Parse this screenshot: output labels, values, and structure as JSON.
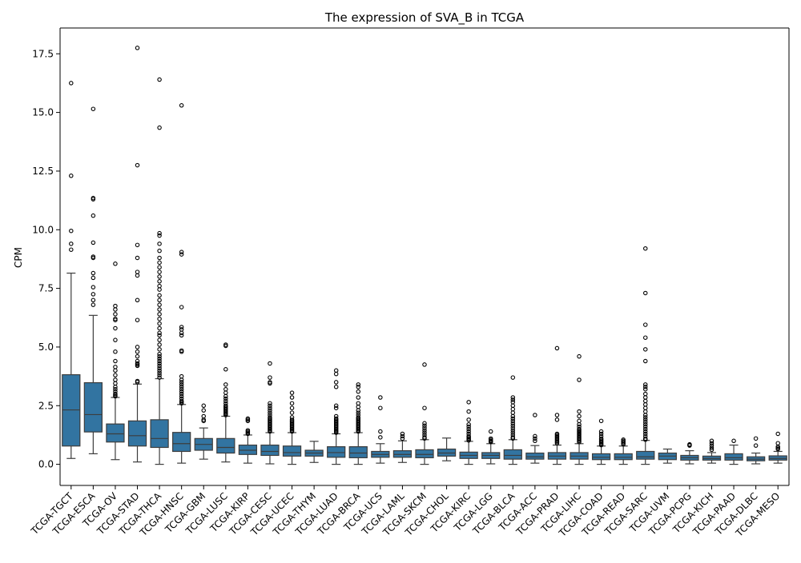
{
  "chart_data": {
    "type": "box",
    "title": "The expression of SVA_B in TCGA",
    "xlabel": "",
    "ylabel": "CPM",
    "ylim": [
      -0.9,
      18.6
    ],
    "yticks": [
      0.0,
      2.5,
      5.0,
      7.5,
      10.0,
      12.5,
      15.0,
      17.5
    ],
    "ytick_labels": [
      "0.0",
      "2.5",
      "5.0",
      "7.5",
      "10.0",
      "12.5",
      "15.0",
      "17.5"
    ],
    "grid": false,
    "legend": "none",
    "colors": {
      "box": "#3274a1",
      "line": "#3d3d3d",
      "axis": "#000000"
    },
    "categories": [
      "TCGA-TGCT",
      "TCGA-ESCA",
      "TCGA-OV",
      "TCGA-STAD",
      "TCGA-THCA",
      "TCGA-HNSC",
      "TCGA-GBM",
      "TCGA-LUSC",
      "TCGA-KIRP",
      "TCGA-CESC",
      "TCGA-UCEC",
      "TCGA-THYM",
      "TCGA-LUAD",
      "TCGA-BRCA",
      "TCGA-UCS",
      "TCGA-LAML",
      "TCGA-SKCM",
      "TCGA-CHOL",
      "TCGA-KIRC",
      "TCGA-LGG",
      "TCGA-BLCA",
      "TCGA-ACC",
      "TCGA-PRAD",
      "TCGA-LIHC",
      "TCGA-COAD",
      "TCGA-READ",
      "TCGA-SARC",
      "TCGA-UVM",
      "TCGA-PCPG",
      "TCGA-KICH",
      "TCGA-PAAD",
      "TCGA-DLBC",
      "TCGA-MESO"
    ],
    "boxes": [
      {
        "whislo": 0.25,
        "q1": 0.78,
        "med": 2.32,
        "q3": 3.82,
        "whishi": 8.15,
        "fliers": [
          16.25,
          12.3,
          9.95,
          9.4,
          9.15
        ]
      },
      {
        "whislo": 0.45,
        "q1": 1.38,
        "med": 2.12,
        "q3": 3.48,
        "whishi": 6.35,
        "fliers": [
          15.15,
          11.35,
          11.3,
          10.6,
          9.45,
          8.85,
          8.8,
          8.15,
          7.95,
          7.55,
          7.25,
          7.0,
          6.8
        ]
      },
      {
        "whislo": 0.2,
        "q1": 0.95,
        "med": 1.3,
        "q3": 1.72,
        "whishi": 2.85,
        "fliers": [
          8.55,
          6.75,
          6.6,
          6.4,
          6.2,
          6.15,
          5.8,
          5.3,
          4.8,
          4.4,
          4.15,
          4.0,
          3.8,
          3.6,
          3.45,
          3.3,
          3.2,
          3.1,
          3.0,
          2.95,
          2.9
        ]
      },
      {
        "whislo": 0.1,
        "q1": 0.78,
        "med": 1.22,
        "q3": 1.85,
        "whishi": 3.42,
        "fliers": [
          17.75,
          12.75,
          9.35,
          8.8,
          8.2,
          8.05,
          7.0,
          6.15,
          5.0,
          4.8,
          4.6,
          4.4,
          4.3,
          4.25,
          4.2,
          3.55,
          3.5
        ]
      },
      {
        "whislo": 0.0,
        "q1": 0.72,
        "med": 1.1,
        "q3": 1.9,
        "whishi": 3.65,
        "fliers": [
          16.4,
          14.35,
          9.85,
          9.75,
          9.4,
          9.1,
          8.8,
          8.6,
          8.4,
          8.2,
          8.0,
          7.8,
          7.6,
          7.45,
          7.2,
          7.0,
          6.8,
          6.6,
          6.4,
          6.2,
          6.0,
          5.8,
          5.6,
          5.5,
          5.3,
          5.1,
          4.9,
          4.7,
          4.6,
          4.5,
          4.4,
          4.3,
          4.2,
          4.1,
          4.0,
          3.9,
          3.8,
          3.7
        ]
      },
      {
        "whislo": 0.05,
        "q1": 0.55,
        "med": 0.88,
        "q3": 1.36,
        "whishi": 2.55,
        "fliers": [
          15.3,
          9.05,
          8.95,
          6.7,
          5.85,
          5.75,
          5.6,
          5.5,
          4.85,
          4.8,
          3.75,
          3.6,
          3.5,
          3.4,
          3.3,
          3.2,
          3.1,
          3.0,
          2.9,
          2.8,
          2.7,
          2.65,
          2.6
        ]
      },
      {
        "whislo": 0.22,
        "q1": 0.6,
        "med": 0.85,
        "q3": 1.1,
        "whishi": 1.55,
        "fliers": [
          2.5,
          2.3,
          2.05,
          1.9,
          1.85
        ]
      },
      {
        "whislo": 0.1,
        "q1": 0.48,
        "med": 0.72,
        "q3": 1.1,
        "whishi": 2.05,
        "fliers": [
          5.1,
          5.05,
          4.05,
          3.4,
          3.2,
          3.05,
          2.9,
          2.8,
          2.7,
          2.6,
          2.5,
          2.45,
          2.4,
          2.35,
          2.3,
          2.25,
          2.2,
          2.15,
          2.1
        ]
      },
      {
        "whislo": 0.05,
        "q1": 0.42,
        "med": 0.6,
        "q3": 0.82,
        "whishi": 1.25,
        "fliers": [
          1.95,
          1.9,
          1.85,
          1.45,
          1.4,
          1.35,
          1.3
        ]
      },
      {
        "whislo": 0.02,
        "q1": 0.38,
        "med": 0.55,
        "q3": 0.82,
        "whishi": 1.35,
        "fliers": [
          4.3,
          3.7,
          3.5,
          3.45,
          2.6,
          2.5,
          2.4,
          2.3,
          2.2,
          2.1,
          2.0,
          1.95,
          1.9,
          1.85,
          1.8,
          1.75,
          1.7,
          1.65,
          1.6,
          1.55,
          1.5,
          1.45,
          1.4
        ]
      },
      {
        "whislo": 0.0,
        "q1": 0.35,
        "med": 0.5,
        "q3": 0.78,
        "whishi": 1.35,
        "fliers": [
          3.05,
          2.85,
          2.6,
          2.4,
          2.2,
          2.0,
          1.9,
          1.85,
          1.8,
          1.75,
          1.7,
          1.65,
          1.6,
          1.55,
          1.5,
          1.45,
          1.4
        ]
      },
      {
        "whislo": 0.08,
        "q1": 0.35,
        "med": 0.48,
        "q3": 0.6,
        "whishi": 0.98,
        "fliers": []
      },
      {
        "whislo": 0.0,
        "q1": 0.3,
        "med": 0.5,
        "q3": 0.75,
        "whishi": 1.3,
        "fliers": [
          4.0,
          3.85,
          3.5,
          3.3,
          2.5,
          2.4,
          2.05,
          1.95,
          1.9,
          1.85,
          1.8,
          1.75,
          1.7,
          1.65,
          1.6,
          1.55,
          1.5,
          1.45,
          1.4,
          1.35
        ]
      },
      {
        "whislo": 0.0,
        "q1": 0.28,
        "med": 0.48,
        "q3": 0.75,
        "whishi": 1.35,
        "fliers": [
          3.4,
          3.3,
          3.1,
          2.85,
          2.6,
          2.45,
          2.3,
          2.2,
          2.1,
          2.0,
          1.95,
          1.9,
          1.85,
          1.8,
          1.75,
          1.7,
          1.65,
          1.6,
          1.55,
          1.5,
          1.45,
          1.4
        ]
      },
      {
        "whislo": 0.05,
        "q1": 0.3,
        "med": 0.42,
        "q3": 0.55,
        "whishi": 0.88,
        "fliers": [
          2.85,
          2.4,
          1.4,
          1.15
        ]
      },
      {
        "whislo": 0.08,
        "q1": 0.3,
        "med": 0.42,
        "q3": 0.58,
        "whishi": 1.0,
        "fliers": [
          1.3,
          1.2,
          1.1
        ]
      },
      {
        "whislo": 0.0,
        "q1": 0.28,
        "med": 0.42,
        "q3": 0.62,
        "whishi": 1.05,
        "fliers": [
          4.25,
          2.4,
          1.75,
          1.65,
          1.55,
          1.45,
          1.35,
          1.25,
          1.15,
          1.1
        ]
      },
      {
        "whislo": 0.15,
        "q1": 0.35,
        "med": 0.48,
        "q3": 0.65,
        "whishi": 1.12,
        "fliers": []
      },
      {
        "whislo": 0.0,
        "q1": 0.25,
        "med": 0.38,
        "q3": 0.52,
        "whishi": 0.98,
        "fliers": [
          2.65,
          2.25,
          1.9,
          1.7,
          1.6,
          1.5,
          1.4,
          1.3,
          1.2,
          1.15,
          1.1,
          1.05,
          1.02
        ]
      },
      {
        "whislo": 0.02,
        "q1": 0.25,
        "med": 0.38,
        "q3": 0.5,
        "whishi": 0.88,
        "fliers": [
          1.4,
          1.1,
          1.05,
          1.0,
          0.98,
          0.95
        ]
      },
      {
        "whislo": 0.0,
        "q1": 0.22,
        "med": 0.38,
        "q3": 0.62,
        "whishi": 1.05,
        "fliers": [
          3.7,
          2.85,
          2.75,
          2.65,
          2.5,
          2.35,
          2.2,
          2.05,
          1.95,
          1.85,
          1.75,
          1.65,
          1.55,
          1.45,
          1.35,
          1.25,
          1.15,
          1.1
        ]
      },
      {
        "whislo": 0.05,
        "q1": 0.22,
        "med": 0.32,
        "q3": 0.48,
        "whishi": 0.8,
        "fliers": [
          2.1,
          1.2,
          1.1,
          1.0
        ]
      },
      {
        "whislo": 0.0,
        "q1": 0.22,
        "med": 0.35,
        "q3": 0.5,
        "whishi": 0.82,
        "fliers": [
          4.95,
          2.1,
          1.9,
          1.3,
          1.25,
          1.2,
          1.15,
          1.1,
          1.05,
          1.0,
          0.95,
          0.9
        ]
      },
      {
        "whislo": 0.0,
        "q1": 0.22,
        "med": 0.35,
        "q3": 0.5,
        "whishi": 0.88,
        "fliers": [
          4.6,
          3.6,
          2.25,
          2.05,
          1.85,
          1.7,
          1.6,
          1.5,
          1.45,
          1.4,
          1.35,
          1.3,
          1.25,
          1.2,
          1.15,
          1.1,
          1.05,
          1.0,
          0.95
        ]
      },
      {
        "whislo": 0.0,
        "q1": 0.2,
        "med": 0.3,
        "q3": 0.45,
        "whishi": 0.78,
        "fliers": [
          1.85,
          1.4,
          1.3,
          1.2,
          1.1,
          1.05,
          1.0,
          0.95,
          0.9,
          0.85,
          0.82
        ]
      },
      {
        "whislo": 0.0,
        "q1": 0.2,
        "med": 0.3,
        "q3": 0.45,
        "whishi": 0.78,
        "fliers": [
          1.05,
          1.0,
          0.95,
          0.9,
          0.85
        ]
      },
      {
        "whislo": 0.0,
        "q1": 0.22,
        "med": 0.32,
        "q3": 0.55,
        "whishi": 1.02,
        "fliers": [
          9.2,
          7.3,
          5.95,
          5.4,
          4.9,
          4.4,
          3.4,
          3.3,
          3.2,
          3.0,
          2.85,
          2.7,
          2.55,
          2.4,
          2.25,
          2.1,
          2.0,
          1.9,
          1.8,
          1.7,
          1.6,
          1.5,
          1.4,
          1.3,
          1.2,
          1.1,
          1.05
        ]
      },
      {
        "whislo": 0.05,
        "q1": 0.2,
        "med": 0.35,
        "q3": 0.48,
        "whishi": 0.65,
        "fliers": []
      },
      {
        "whislo": 0.02,
        "q1": 0.18,
        "med": 0.28,
        "q3": 0.38,
        "whishi": 0.58,
        "fliers": [
          0.85,
          0.82,
          0.8
        ]
      },
      {
        "whislo": 0.05,
        "q1": 0.18,
        "med": 0.25,
        "q3": 0.35,
        "whishi": 0.5,
        "fliers": [
          1.0,
          0.9,
          0.8,
          0.7,
          0.62
        ]
      },
      {
        "whislo": 0.0,
        "q1": 0.18,
        "med": 0.28,
        "q3": 0.45,
        "whishi": 0.82,
        "fliers": [
          1.0
        ]
      },
      {
        "whislo": 0.02,
        "q1": 0.15,
        "med": 0.22,
        "q3": 0.32,
        "whishi": 0.48,
        "fliers": [
          1.1,
          0.8
        ]
      },
      {
        "whislo": 0.05,
        "q1": 0.18,
        "med": 0.25,
        "q3": 0.36,
        "whishi": 0.55,
        "fliers": [
          1.3,
          0.9,
          0.75,
          0.7,
          0.65
        ]
      }
    ]
  }
}
